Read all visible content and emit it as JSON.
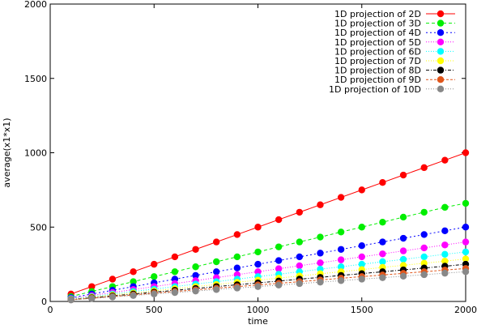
{
  "chart_data": {
    "type": "scatter",
    "title": "",
    "xlabel": "time",
    "ylabel": "average(x1*x1)",
    "xlim": [
      0,
      2000
    ],
    "ylim": [
      0,
      2000
    ],
    "xticks": [
      0,
      500,
      1000,
      1500,
      2000
    ],
    "yticks": [
      0,
      500,
      1000,
      1500,
      2000
    ],
    "grid": false,
    "legend_position": "top-right",
    "x": [
      100,
      200,
      300,
      400,
      500,
      600,
      700,
      800,
      900,
      1000,
      1100,
      1200,
      1300,
      1400,
      1500,
      1600,
      1700,
      1800,
      1900,
      2000
    ],
    "series": [
      {
        "name": "1D projection of 2D",
        "color": "#ff0000",
        "dash": "",
        "values": [
          50,
          100,
          150,
          200,
          250,
          300,
          350,
          400,
          450,
          500,
          550,
          600,
          650,
          700,
          750,
          800,
          850,
          900,
          950,
          1000
        ]
      },
      {
        "name": "1D projection of 3D",
        "color": "#00ee00",
        "dash": "4,3",
        "values": [
          33,
          67,
          100,
          133,
          167,
          200,
          233,
          267,
          300,
          333,
          367,
          400,
          433,
          467,
          500,
          533,
          567,
          600,
          633,
          660
        ]
      },
      {
        "name": "1D projection of 4D",
        "color": "#0000ff",
        "dash": "2,3",
        "values": [
          25,
          50,
          75,
          100,
          125,
          150,
          175,
          200,
          225,
          250,
          275,
          300,
          325,
          350,
          375,
          400,
          425,
          450,
          475,
          500
        ]
      },
      {
        "name": "1D projection of 5D",
        "color": "#ff00ff",
        "dash": "1,2",
        "values": [
          20,
          40,
          60,
          80,
          100,
          120,
          140,
          160,
          180,
          200,
          220,
          240,
          260,
          280,
          300,
          320,
          340,
          360,
          380,
          400
        ]
      },
      {
        "name": "1D projection of 6D",
        "color": "#00ffff",
        "dash": "1,2",
        "values": [
          17,
          33,
          50,
          67,
          83,
          100,
          117,
          133,
          150,
          167,
          183,
          200,
          217,
          233,
          250,
          267,
          283,
          300,
          317,
          333
        ]
      },
      {
        "name": "1D projection of 7D",
        "color": "#ffff00",
        "dash": "1,2",
        "values": [
          14,
          29,
          43,
          57,
          71,
          86,
          100,
          114,
          129,
          143,
          157,
          171,
          186,
          200,
          214,
          229,
          243,
          257,
          271,
          286
        ]
      },
      {
        "name": "1D projection of 8D",
        "color": "#000000",
        "dash": "4,2,1,2",
        "values": [
          12,
          25,
          37,
          50,
          62,
          75,
          87,
          100,
          112,
          125,
          137,
          150,
          162,
          175,
          187,
          200,
          212,
          225,
          237,
          250
        ]
      },
      {
        "name": "1D projection of 9D",
        "color": "#e0561b",
        "dash": "3,2",
        "values": [
          11,
          22,
          33,
          44,
          56,
          67,
          78,
          89,
          100,
          111,
          122,
          133,
          144,
          156,
          167,
          178,
          189,
          200,
          211,
          222
        ]
      },
      {
        "name": "1D projection of 10D",
        "color": "#888888",
        "dash": "1,2",
        "values": [
          10,
          20,
          30,
          40,
          50,
          60,
          70,
          80,
          90,
          100,
          110,
          120,
          130,
          140,
          150,
          160,
          170,
          180,
          190,
          200
        ]
      }
    ]
  }
}
